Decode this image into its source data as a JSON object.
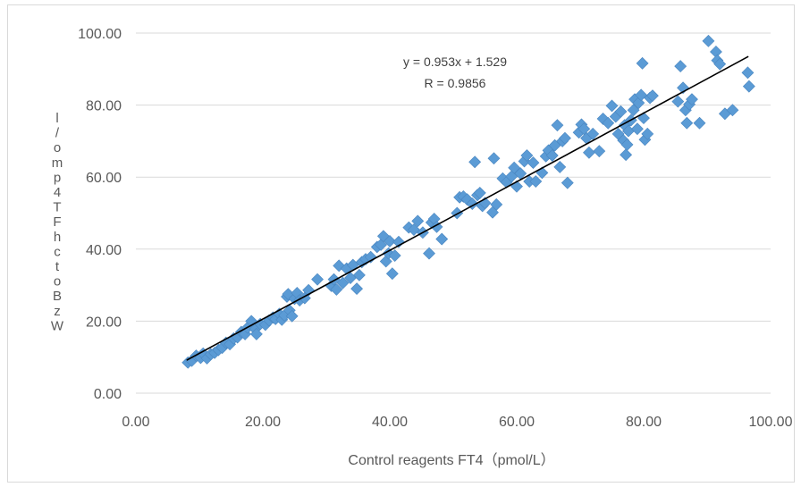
{
  "chart_data": {
    "type": "scatter",
    "xlabel": "Control reagents FT4（pmol/L）",
    "ylabel": "l/omp 4TF hctoBz W",
    "xlim": [
      0,
      100
    ],
    "ylim": [
      0,
      100
    ],
    "x_ticks": [
      "0.00",
      "20.00",
      "40.00",
      "60.00",
      "80.00",
      "100.00"
    ],
    "y_ticks": [
      "0.00",
      "20.00",
      "40.00",
      "60.00",
      "80.00",
      "100.00"
    ],
    "grid": "horizontal",
    "marker": "diamond",
    "marker_color": "#5b9bd5",
    "trendline": {
      "slope": 0.953,
      "intercept": 1.529,
      "x_range": [
        8,
        96.5
      ],
      "color": "#000000"
    },
    "annotation": {
      "equation": "y = 0.953x + 1.529",
      "r": "R = 0.9856"
    },
    "points": [
      [
        8.2,
        8.5
      ],
      [
        8.8,
        9.0
      ],
      [
        9.5,
        10.4
      ],
      [
        10.2,
        9.8
      ],
      [
        10.6,
        11.0
      ],
      [
        11.2,
        9.7
      ],
      [
        11.8,
        10.8
      ],
      [
        12.4,
        11.2
      ],
      [
        13.0,
        12.0
      ],
      [
        13.6,
        12.6
      ],
      [
        14.2,
        14.0
      ],
      [
        14.8,
        13.6
      ],
      [
        15.4,
        15.2
      ],
      [
        16.0,
        15.5
      ],
      [
        16.6,
        17.0
      ],
      [
        17.2,
        16.4
      ],
      [
        17.6,
        18.2
      ],
      [
        18.2,
        20.0
      ],
      [
        18.8,
        17.8
      ],
      [
        19.0,
        16.4
      ],
      [
        19.6,
        19.2
      ],
      [
        20.4,
        19.0
      ],
      [
        21.0,
        20.2
      ],
      [
        21.6,
        21.0
      ],
      [
        22.0,
        20.6
      ],
      [
        22.6,
        22.0
      ],
      [
        23.0,
        20.4
      ],
      [
        23.4,
        21.6
      ],
      [
        23.8,
        26.8
      ],
      [
        24.0,
        27.5
      ],
      [
        24.2,
        23.0
      ],
      [
        24.6,
        21.4
      ],
      [
        25.0,
        26.2
      ],
      [
        25.4,
        27.8
      ],
      [
        25.8,
        25.8
      ],
      [
        26.6,
        26.4
      ],
      [
        27.2,
        28.6
      ],
      [
        28.6,
        31.6
      ],
      [
        30.8,
        29.8
      ],
      [
        31.2,
        31.6
      ],
      [
        31.6,
        28.8
      ],
      [
        32.0,
        35.4
      ],
      [
        32.6,
        30.6
      ],
      [
        33.2,
        34.6
      ],
      [
        33.8,
        32.0
      ],
      [
        34.2,
        35.6
      ],
      [
        34.8,
        29.0
      ],
      [
        35.2,
        32.8
      ],
      [
        35.6,
        36.4
      ],
      [
        36.2,
        37.2
      ],
      [
        37.0,
        37.8
      ],
      [
        38.0,
        40.6
      ],
      [
        38.6,
        41.2
      ],
      [
        39.0,
        43.6
      ],
      [
        39.4,
        36.6
      ],
      [
        39.8,
        38.8
      ],
      [
        40.0,
        42.2
      ],
      [
        40.4,
        33.2
      ],
      [
        40.8,
        38.2
      ],
      [
        41.4,
        42.0
      ],
      [
        43.0,
        46.0
      ],
      [
        43.8,
        45.4
      ],
      [
        44.4,
        47.8
      ],
      [
        45.2,
        44.6
      ],
      [
        46.2,
        38.8
      ],
      [
        46.6,
        47.4
      ],
      [
        47.0,
        48.4
      ],
      [
        47.4,
        46.2
      ],
      [
        48.2,
        42.8
      ],
      [
        50.6,
        50.0
      ],
      [
        51.0,
        54.4
      ],
      [
        51.6,
        54.6
      ],
      [
        52.2,
        53.8
      ],
      [
        53.0,
        52.6
      ],
      [
        53.4,
        64.2
      ],
      [
        53.8,
        55.0
      ],
      [
        54.2,
        55.6
      ],
      [
        54.6,
        52.0
      ],
      [
        55.0,
        52.8
      ],
      [
        56.2,
        50.2
      ],
      [
        56.4,
        65.2
      ],
      [
        56.8,
        52.4
      ],
      [
        57.8,
        59.6
      ],
      [
        58.4,
        58.6
      ],
      [
        59.2,
        60.2
      ],
      [
        59.6,
        62.6
      ],
      [
        60.0,
        57.4
      ],
      [
        60.6,
        61.0
      ],
      [
        61.2,
        64.4
      ],
      [
        61.6,
        66.0
      ],
      [
        62.0,
        58.8
      ],
      [
        62.6,
        64.0
      ],
      [
        63.0,
        58.8
      ],
      [
        64.0,
        61.2
      ],
      [
        64.6,
        65.8
      ],
      [
        65.0,
        67.4
      ],
      [
        65.6,
        66.0
      ],
      [
        66.0,
        68.8
      ],
      [
        66.4,
        74.4
      ],
      [
        66.8,
        62.8
      ],
      [
        67.2,
        70.0
      ],
      [
        67.6,
        70.8
      ],
      [
        68.0,
        58.4
      ],
      [
        69.8,
        72.4
      ],
      [
        70.2,
        74.6
      ],
      [
        70.6,
        73.4
      ],
      [
        71.0,
        70.8
      ],
      [
        71.4,
        66.8
      ],
      [
        72.0,
        72.0
      ],
      [
        73.0,
        67.2
      ],
      [
        73.6,
        76.2
      ],
      [
        74.4,
        75.0
      ],
      [
        75.0,
        79.8
      ],
      [
        75.6,
        76.8
      ],
      [
        76.0,
        72.0
      ],
      [
        76.4,
        78.2
      ],
      [
        76.8,
        70.2
      ],
      [
        77.0,
        74.4
      ],
      [
        77.2,
        66.2
      ],
      [
        77.4,
        69.0
      ],
      [
        77.6,
        72.8
      ],
      [
        78.0,
        75.8
      ],
      [
        78.4,
        78.6
      ],
      [
        78.6,
        81.6
      ],
      [
        79.0,
        73.4
      ],
      [
        79.2,
        80.6
      ],
      [
        79.6,
        82.8
      ],
      [
        79.8,
        91.6
      ],
      [
        80.0,
        76.4
      ],
      [
        80.2,
        70.4
      ],
      [
        80.6,
        72.0
      ],
      [
        81.0,
        82.0
      ],
      [
        81.4,
        82.6
      ],
      [
        85.4,
        81.0
      ],
      [
        85.8,
        90.8
      ],
      [
        86.2,
        84.8
      ],
      [
        86.6,
        78.6
      ],
      [
        86.8,
        75.0
      ],
      [
        87.2,
        80.2
      ],
      [
        87.6,
        81.6
      ],
      [
        88.8,
        75.0
      ],
      [
        90.2,
        97.8
      ],
      [
        91.4,
        94.8
      ],
      [
        91.6,
        92.4
      ],
      [
        92.0,
        91.4
      ],
      [
        92.8,
        77.6
      ],
      [
        94.0,
        78.6
      ],
      [
        96.4,
        89.0
      ],
      [
        96.6,
        85.2
      ]
    ]
  }
}
